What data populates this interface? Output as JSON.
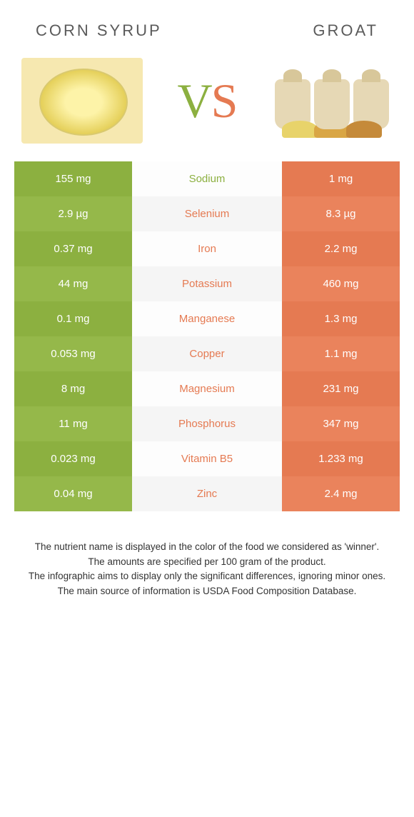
{
  "header": {
    "left_title": "CORN SYRUP",
    "right_title": "GROAT",
    "vs_text": "VS"
  },
  "colors": {
    "left": "#8cb040",
    "left_alt": "#95b84a",
    "right": "#e57a52",
    "right_alt": "#ea835c",
    "mid_winner_left": "#8cb040",
    "mid_winner_right": "#e57a52",
    "vs_left": "#8cb040",
    "vs_right": "#e57a52"
  },
  "table": {
    "rows": [
      {
        "left": "155 mg",
        "label": "Sodium",
        "right": "1 mg",
        "winner": "left"
      },
      {
        "left": "2.9 µg",
        "label": "Selenium",
        "right": "8.3 µg",
        "winner": "right"
      },
      {
        "left": "0.37 mg",
        "label": "Iron",
        "right": "2.2 mg",
        "winner": "right"
      },
      {
        "left": "44 mg",
        "label": "Potassium",
        "right": "460 mg",
        "winner": "right"
      },
      {
        "left": "0.1 mg",
        "label": "Manganese",
        "right": "1.3 mg",
        "winner": "right"
      },
      {
        "left": "0.053 mg",
        "label": "Copper",
        "right": "1.1 mg",
        "winner": "right"
      },
      {
        "left": "8 mg",
        "label": "Magnesium",
        "right": "231 mg",
        "winner": "right"
      },
      {
        "left": "11 mg",
        "label": "Phosphorus",
        "right": "347 mg",
        "winner": "right"
      },
      {
        "left": "0.023 mg",
        "label": "Vitamin B5",
        "right": "1.233 mg",
        "winner": "right"
      },
      {
        "left": "0.04 mg",
        "label": "Zinc",
        "right": "2.4 mg",
        "winner": "right"
      }
    ]
  },
  "footer": {
    "line1": "The nutrient name is displayed in the color of the food we considered as 'winner'.",
    "line2": "The amounts are specified per 100 gram of the product.",
    "line3": "The infographic aims to display only the significant differences, ignoring minor ones.",
    "line4": "The main source of information is USDA Food Composition Database."
  }
}
